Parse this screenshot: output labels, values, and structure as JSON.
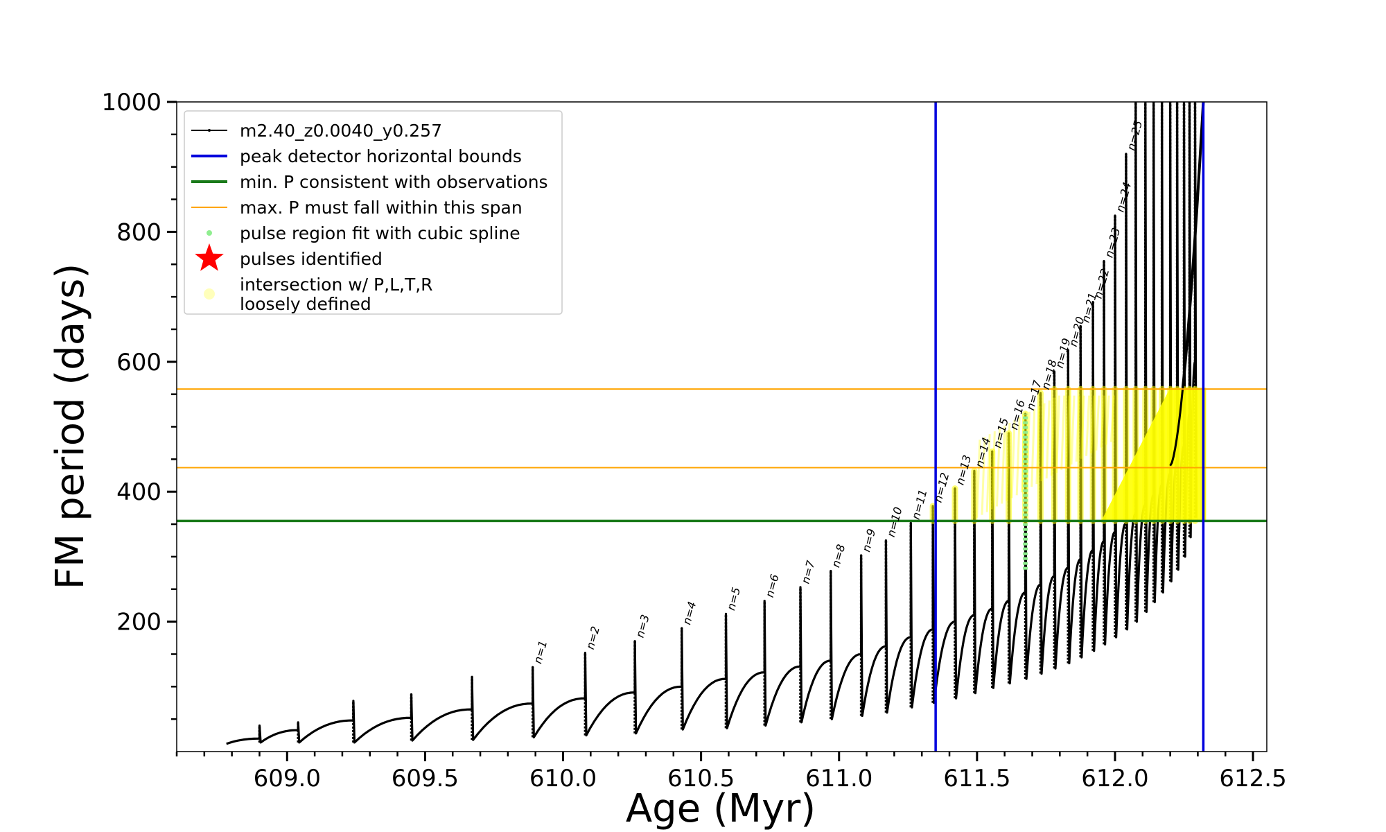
{
  "chart_data": {
    "type": "line",
    "title": "",
    "xlabel": "Age (Myr)",
    "ylabel": "FM period (days)",
    "xlim": [
      608.6,
      612.55
    ],
    "ylim": [
      0,
      1000
    ],
    "xticks": [
      609.0,
      609.5,
      610.0,
      610.5,
      611.0,
      611.5,
      612.0,
      612.5
    ],
    "xtick_labels": [
      "609.0",
      "609.5",
      "610.0",
      "610.5",
      "611.0",
      "611.5",
      "612.0",
      "612.5"
    ],
    "yticks": [
      200,
      400,
      600,
      800,
      1000
    ],
    "ytick_labels": [
      "200",
      "400",
      "600",
      "800",
      "1000"
    ],
    "grid": false,
    "legend_position": "top-left",
    "colors": {
      "track": "#000000",
      "bounds": "#0000dd",
      "min_p": "#1a7a1a",
      "max_p_span": "#ffa500",
      "spline": "#90ee90",
      "pulses": "#ff0000",
      "intersection": "#ffff00"
    },
    "legend": [
      {
        "label": "m2.40_z0.0040_y0.257",
        "kind": "line-marker",
        "color": "#000000"
      },
      {
        "label": "peak detector horizontal bounds",
        "kind": "thick-line",
        "color": "#0000dd"
      },
      {
        "label": "min. P consistent with observations",
        "kind": "thick-line",
        "color": "#1a7a1a"
      },
      {
        "label": "max. P must fall within this span",
        "kind": "thin-line",
        "color": "#ffa500"
      },
      {
        "label": "pulse region fit with cubic spline",
        "kind": "dot",
        "color": "#90ee90"
      },
      {
        "label": "pulses identified",
        "kind": "star",
        "color": "#ff0000"
      },
      {
        "label": "intersection w/ P,L,T,R",
        "label2": "loosely defined",
        "kind": "circle",
        "color": "#ffffaa"
      }
    ],
    "vertical_bounds": [
      611.35,
      612.32
    ],
    "min_period": 355,
    "max_period_span": [
      437,
      558
    ],
    "early_pulses": [
      {
        "age": 608.9,
        "peak": 40,
        "trough": 14,
        "base": 20
      },
      {
        "age": 609.04,
        "peak": 45,
        "trough": 14,
        "base": 33
      },
      {
        "age": 609.24,
        "peak": 78,
        "trough": 14,
        "base": 48
      },
      {
        "age": 609.45,
        "peak": 88,
        "trough": 17,
        "base": 52
      },
      {
        "age": 609.67,
        "peak": 115,
        "trough": 18,
        "base": 65
      }
    ],
    "series": [
      {
        "name": "m2.40_z0.0040_y0.257",
        "pulses": [
          {
            "n": 1,
            "age": 609.89,
            "peak": 130,
            "trough": 22,
            "base": 74
          },
          {
            "n": 2,
            "age": 610.08,
            "peak": 152,
            "trough": 25,
            "base": 82
          },
          {
            "n": 3,
            "age": 610.26,
            "peak": 170,
            "trough": 28,
            "base": 91
          },
          {
            "n": 4,
            "age": 610.43,
            "peak": 190,
            "trough": 34,
            "base": 100
          },
          {
            "n": 5,
            "age": 610.59,
            "peak": 212,
            "trough": 36,
            "base": 112
          },
          {
            "n": 6,
            "age": 610.73,
            "peak": 232,
            "trough": 40,
            "base": 122
          },
          {
            "n": 7,
            "age": 610.86,
            "peak": 253,
            "trough": 45,
            "base": 131
          },
          {
            "n": 8,
            "age": 610.97,
            "peak": 278,
            "trough": 50,
            "base": 140
          },
          {
            "n": 9,
            "age": 611.08,
            "peak": 302,
            "trough": 55,
            "base": 150
          },
          {
            "n": 10,
            "age": 611.17,
            "peak": 325,
            "trough": 60,
            "base": 162
          },
          {
            "n": 11,
            "age": 611.26,
            "peak": 352,
            "trough": 68,
            "base": 176
          },
          {
            "n": 12,
            "age": 611.34,
            "peak": 378,
            "trough": 75,
            "base": 188
          },
          {
            "n": 13,
            "age": 611.42,
            "peak": 405,
            "trough": 82,
            "base": 200
          },
          {
            "n": 14,
            "age": 611.49,
            "peak": 432,
            "trough": 90,
            "base": 210
          },
          {
            "n": 15,
            "age": 611.555,
            "peak": 462,
            "trough": 98,
            "base": 220
          },
          {
            "n": 16,
            "age": 611.615,
            "peak": 490,
            "trough": 105,
            "base": 232
          },
          {
            "n": 17,
            "age": 611.675,
            "peak": 520,
            "trough": 112,
            "base": 245
          },
          {
            "n": 18,
            "age": 611.73,
            "peak": 552,
            "trough": 120,
            "base": 257
          },
          {
            "n": 19,
            "age": 611.78,
            "peak": 585,
            "trough": 128,
            "base": 270
          },
          {
            "n": 20,
            "age": 611.83,
            "peak": 618,
            "trough": 136,
            "base": 283
          },
          {
            "n": 21,
            "age": 611.875,
            "peak": 655,
            "trough": 145,
            "base": 296
          },
          {
            "n": 22,
            "age": 611.92,
            "peak": 692,
            "trough": 155,
            "base": 310
          },
          {
            "n": 23,
            "age": 611.96,
            "peak": 755,
            "trough": 165,
            "base": 324
          },
          {
            "n": 24,
            "age": 612.0,
            "peak": 825,
            "trough": 176,
            "base": 338
          },
          {
            "n": 25,
            "age": 612.04,
            "peak": 920,
            "trough": 188,
            "base": 352
          },
          {
            "n": null,
            "age": 612.075,
            "peak": 1000,
            "trough": 200,
            "base": 366
          },
          {
            "n": null,
            "age": 612.11,
            "peak": 1000,
            "trough": 215,
            "base": 380
          },
          {
            "n": null,
            "age": 612.14,
            "peak": 1000,
            "trough": 230,
            "base": 395
          },
          {
            "n": null,
            "age": 612.17,
            "peak": 1000,
            "trough": 245,
            "base": 410
          },
          {
            "n": null,
            "age": 612.2,
            "peak": 1000,
            "trough": 262,
            "base": 428
          },
          {
            "n": null,
            "age": 612.225,
            "peak": 1000,
            "trough": 280,
            "base": 448
          },
          {
            "n": null,
            "age": 612.25,
            "peak": 1000,
            "trough": 300,
            "base": 470
          },
          {
            "n": null,
            "age": 612.27,
            "peak": 1000,
            "trough": 330,
            "base": 520
          },
          {
            "n": null,
            "age": 612.29,
            "peak": 1000,
            "trough": 360,
            "base": 600
          }
        ]
      }
    ],
    "green_spline_segment": {
      "age": 611.675,
      "from": 280,
      "to": 520
    },
    "final_rise": {
      "age_start": 612.2,
      "age_end": 612.32,
      "from": 440,
      "to": 1000
    }
  }
}
